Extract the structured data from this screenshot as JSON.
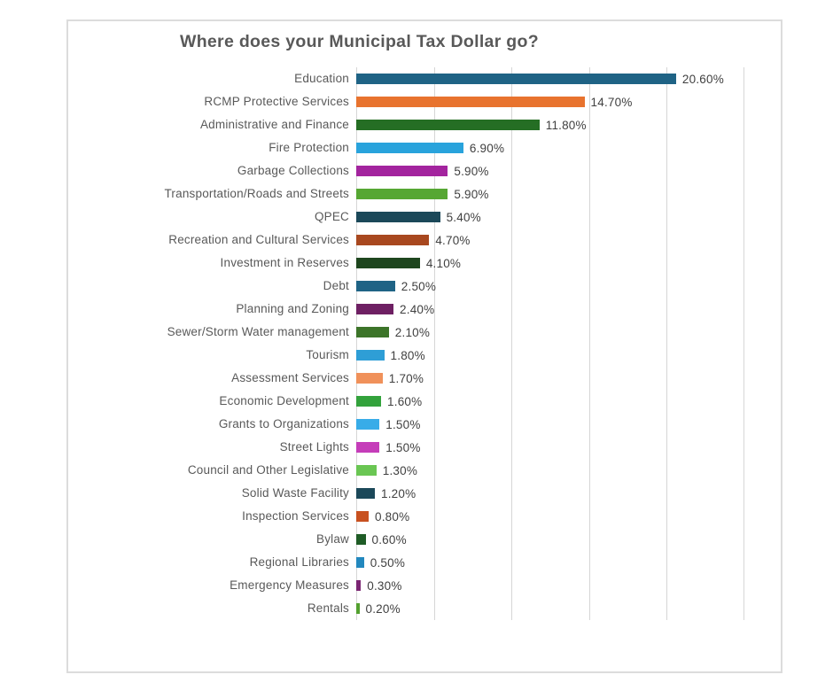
{
  "title": "Where does your Municipal Tax Dollar go?",
  "chart_data": {
    "type": "bar",
    "orientation": "horizontal",
    "title": "Where does your Municipal Tax Dollar go?",
    "categories": [
      "Education",
      "RCMP Protective Services",
      "Administrative and Finance",
      "Fire Protection",
      "Garbage Collections",
      "Transportation/Roads and Streets",
      "QPEC",
      "Recreation and Cultural Services",
      "Investment in Reserves",
      "Debt",
      "Planning and Zoning",
      "Sewer/Storm Water management",
      "Tourism",
      "Assessment Services",
      "Economic Development",
      "Grants to Organizations",
      "Street Lights",
      "Council and Other Legislative",
      "Solid Waste Facility",
      "Inspection Services",
      "Bylaw",
      "Regional Libraries",
      "Emergency Measures",
      "Rentals"
    ],
    "values": [
      20.6,
      14.7,
      11.8,
      6.9,
      5.9,
      5.9,
      5.4,
      4.7,
      4.1,
      2.5,
      2.4,
      2.1,
      1.8,
      1.7,
      1.6,
      1.5,
      1.5,
      1.3,
      1.2,
      0.8,
      0.6,
      0.5,
      0.3,
      0.2
    ],
    "value_labels": [
      "20.60%",
      "14.70%",
      "11.80%",
      "6.90%",
      "5.90%",
      "5.90%",
      "5.40%",
      "4.70%",
      "4.10%",
      "2.50%",
      "2.40%",
      "2.10%",
      "1.80%",
      "1.70%",
      "1.60%",
      "1.50%",
      "1.50%",
      "1.30%",
      "1.20%",
      "0.80%",
      "0.60%",
      "0.50%",
      "0.30%",
      "0.20%"
    ],
    "bar_colors": [
      "#1F6385",
      "#E8732E",
      "#256E24",
      "#29A3DC",
      "#A3249E",
      "#56A733",
      "#1B4859",
      "#A8481F",
      "#1E461E",
      "#1F6385",
      "#6E2063",
      "#3C7429",
      "#2E9ED6",
      "#F0915A",
      "#33A23C",
      "#38ACE8",
      "#C53DB9",
      "#6AC653",
      "#1B4859",
      "#C85120",
      "#1F5C26",
      "#2388BE",
      "#7B2673",
      "#53A02F"
    ],
    "xlim": [
      0,
      25
    ],
    "gridline_interval": 5,
    "gridlines_at": [
      0,
      5,
      10,
      15,
      20,
      25
    ],
    "grid": true,
    "legend": false,
    "value_labels_shown": true
  },
  "style_colors": {
    "title_text": "#595959",
    "category_text": "#595959",
    "value_text": "#404040",
    "gridline": "#D6D6D6",
    "frame_border": "#DCDCDC",
    "background": "#FFFFFF"
  }
}
